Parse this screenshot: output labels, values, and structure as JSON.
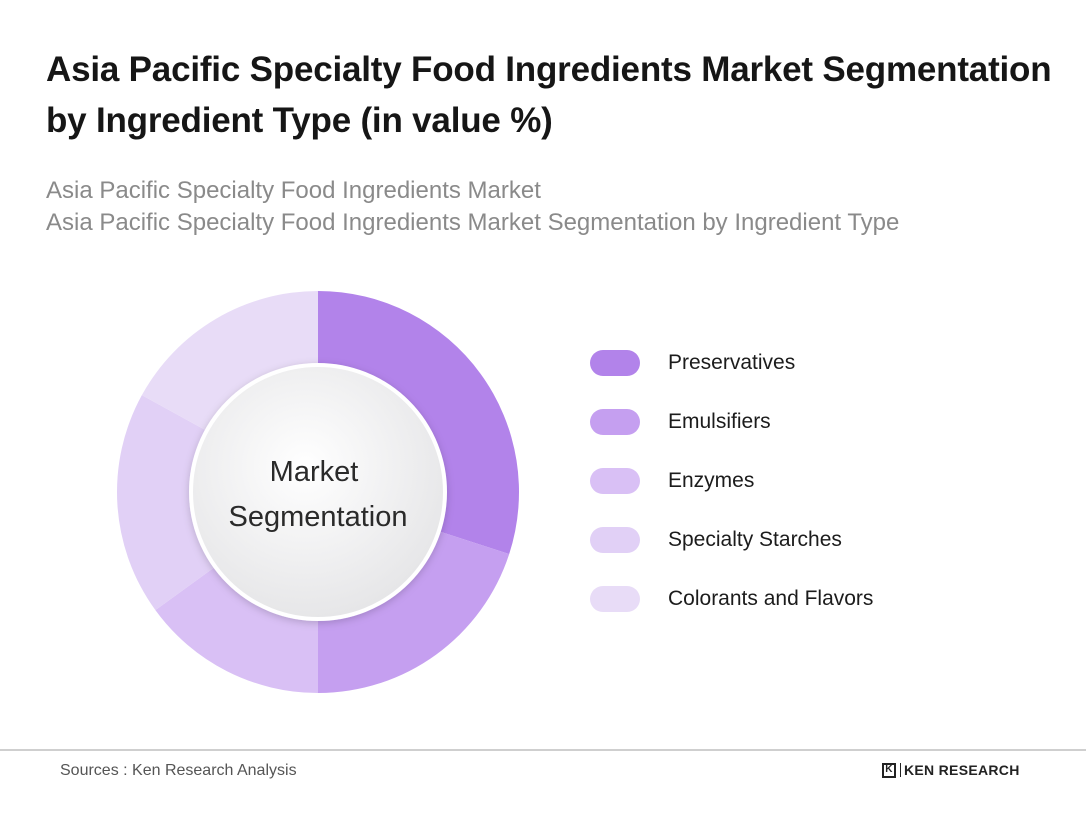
{
  "title": "Asia Pacific Specialty Food Ingredients Market Segmentation by Ingredient Type (in value %)",
  "subtitle_lines": [
    "Asia Pacific Specialty Food Ingredients Market",
    "Asia Pacific Specialty Food Ingredients Market Segmentation by Ingredient Type"
  ],
  "center_label": [
    "Market",
    "Segmentation"
  ],
  "chart_data": {
    "type": "pie",
    "categories": [
      "Preservatives",
      "Emulsifiers",
      "Enzymes",
      "Specialty Starches",
      "Colorants and Flavors"
    ],
    "values": [
      30,
      20,
      15,
      18,
      17
    ],
    "colors": [
      "#b283ea",
      "#c59ff0",
      "#d9c0f5",
      "#e1d0f6",
      "#e8dcf7"
    ],
    "legend_position": "right"
  },
  "footer": {
    "source": "Sources : Ken Research Analysis",
    "brand_mark": "K",
    "brand_name": "KEN RESEARCH"
  }
}
